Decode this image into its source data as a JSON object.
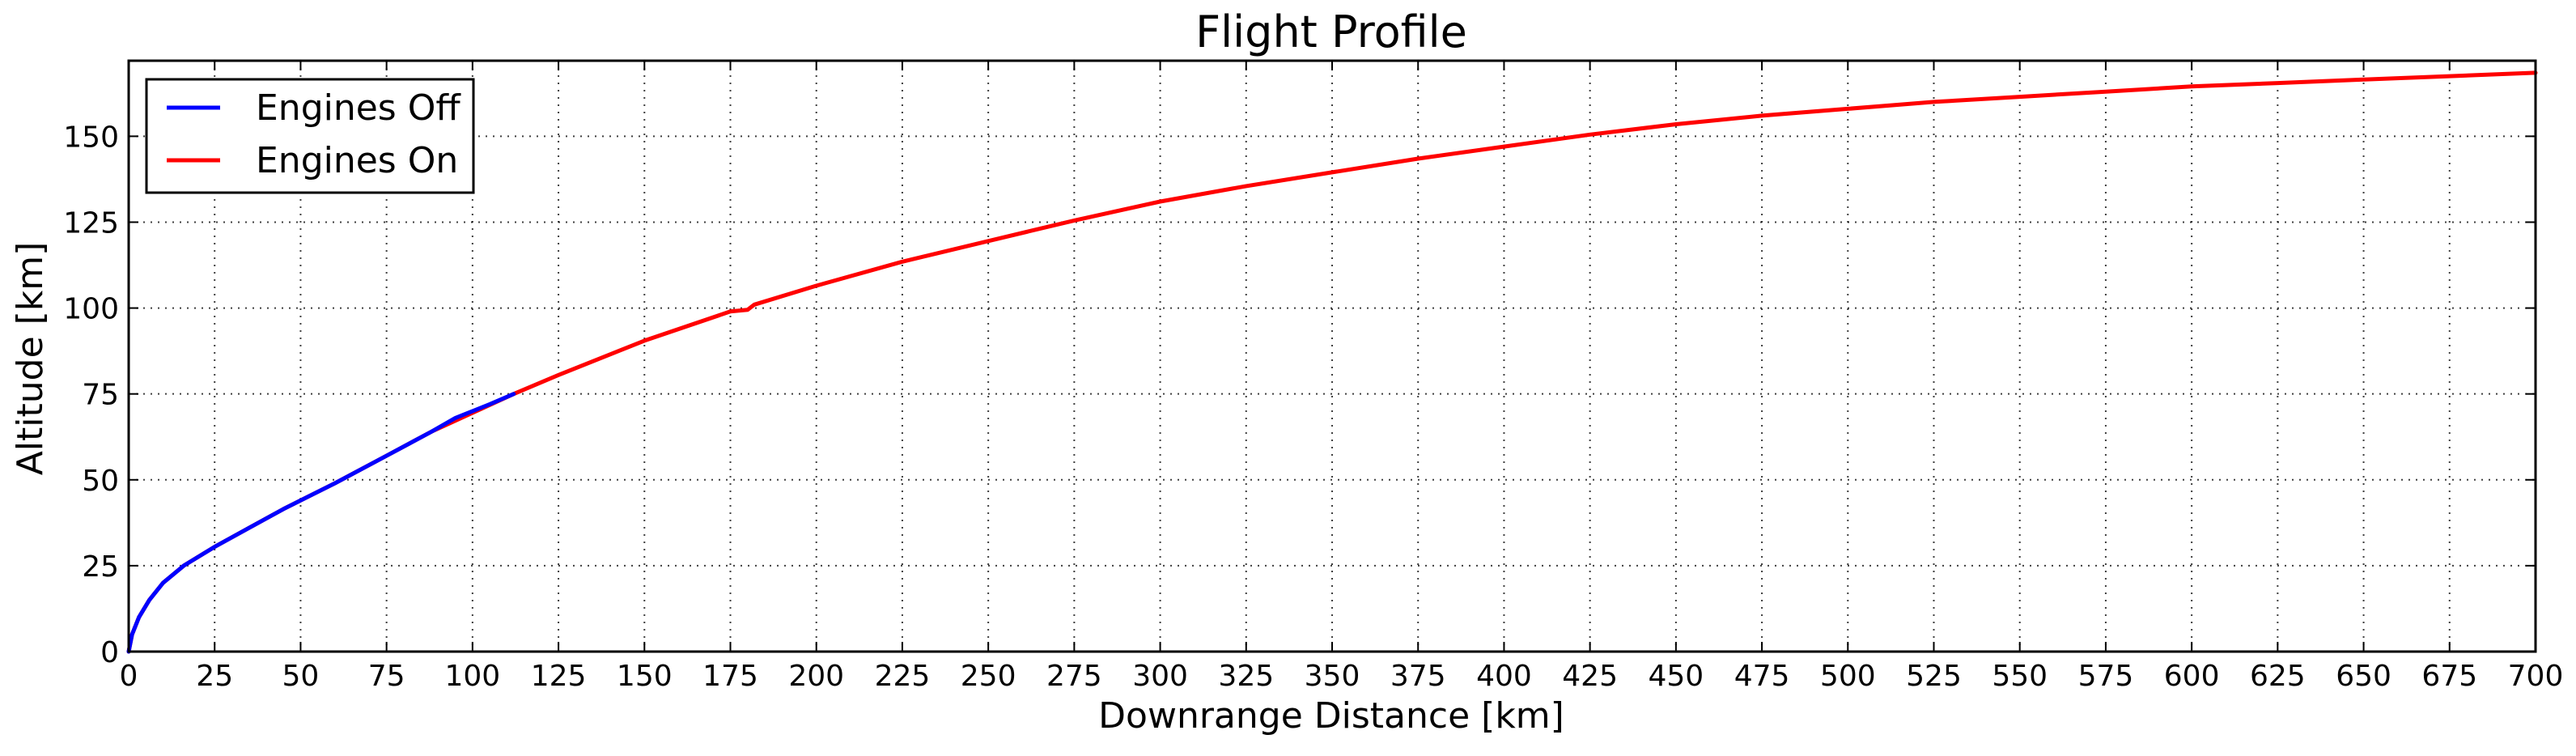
{
  "chart_data": {
    "type": "line",
    "title": "Flight Profile",
    "xlabel": "Downrange Distance [km]",
    "ylabel": "Altitude [km]",
    "xlim": [
      0,
      700
    ],
    "ylim": [
      0,
      172
    ],
    "xticks": [
      0,
      25,
      50,
      75,
      100,
      125,
      150,
      175,
      200,
      225,
      250,
      275,
      300,
      325,
      350,
      375,
      400,
      425,
      450,
      475,
      500,
      525,
      550,
      575,
      600,
      625,
      650,
      675,
      700
    ],
    "yticks": [
      0,
      25,
      50,
      75,
      100,
      125,
      150
    ],
    "grid": true,
    "legend_position": "top-left",
    "series": [
      {
        "name": "Engines Off",
        "color": "#0000ff",
        "points": [
          [
            0,
            0
          ],
          [
            1,
            5
          ],
          [
            3,
            10
          ],
          [
            6,
            15
          ],
          [
            10,
            20
          ],
          [
            16,
            25
          ],
          [
            25,
            30.5
          ],
          [
            35,
            36
          ],
          [
            45,
            41.5
          ],
          [
            60,
            49
          ],
          [
            75,
            57
          ],
          [
            88,
            64
          ],
          [
            95,
            68
          ],
          [
            100,
            70
          ],
          [
            105,
            72
          ],
          [
            112,
            75
          ]
        ]
      },
      {
        "name": "Engines On",
        "color": "#ff0000",
        "points": [
          [
            0,
            0
          ],
          [
            1,
            5
          ],
          [
            3,
            10
          ],
          [
            6,
            15
          ],
          [
            10,
            20
          ],
          [
            16,
            25
          ],
          [
            25,
            30.5
          ],
          [
            35,
            36
          ],
          [
            45,
            41.5
          ],
          [
            60,
            49
          ],
          [
            75,
            57
          ],
          [
            88,
            64
          ],
          [
            112,
            75
          ],
          [
            125,
            80.5
          ],
          [
            150,
            90.5
          ],
          [
            175,
            99
          ],
          [
            180,
            99.5
          ],
          [
            182,
            101
          ],
          [
            200,
            106.5
          ],
          [
            225,
            113.5
          ],
          [
            250,
            119.5
          ],
          [
            275,
            125.5
          ],
          [
            300,
            131
          ],
          [
            325,
            135.5
          ],
          [
            350,
            139.5
          ],
          [
            375,
            143.5
          ],
          [
            400,
            147
          ],
          [
            425,
            150.5
          ],
          [
            450,
            153.5
          ],
          [
            475,
            156
          ],
          [
            500,
            158
          ],
          [
            525,
            160
          ],
          [
            550,
            161.5
          ],
          [
            575,
            163
          ],
          [
            600,
            164.5
          ],
          [
            625,
            165.5
          ],
          [
            650,
            166.5
          ],
          [
            675,
            167.5
          ],
          [
            700,
            168.5
          ]
        ]
      }
    ]
  }
}
